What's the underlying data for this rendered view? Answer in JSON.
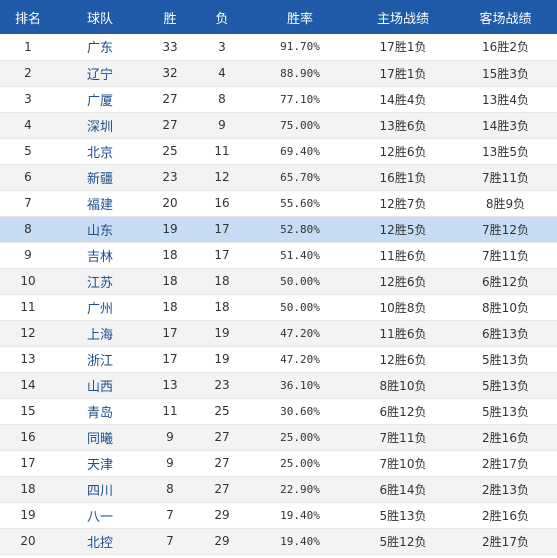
{
  "headers": {
    "rank": "排名",
    "team": "球队",
    "wins": "胜",
    "losses": "负",
    "rate": "胜率",
    "home": "主场战绩",
    "away": "客场战绩"
  },
  "rows": [
    {
      "rank": "1",
      "team": "广东",
      "wins": "33",
      "losses": "3",
      "rate": "91.70%",
      "home": "17胜1负",
      "away": "16胜2负"
    },
    {
      "rank": "2",
      "team": "辽宁",
      "wins": "32",
      "losses": "4",
      "rate": "88.90%",
      "home": "17胜1负",
      "away": "15胜3负"
    },
    {
      "rank": "3",
      "team": "广厦",
      "wins": "27",
      "losses": "8",
      "rate": "77.10%",
      "home": "14胜4负",
      "away": "13胜4负"
    },
    {
      "rank": "4",
      "team": "深圳",
      "wins": "27",
      "losses": "9",
      "rate": "75.00%",
      "home": "13胜6负",
      "away": "14胜3负"
    },
    {
      "rank": "5",
      "team": "北京",
      "wins": "25",
      "losses": "11",
      "rate": "69.40%",
      "home": "12胜6负",
      "away": "13胜5负"
    },
    {
      "rank": "6",
      "team": "新疆",
      "wins": "23",
      "losses": "12",
      "rate": "65.70%",
      "home": "16胜1负",
      "away": "7胜11负"
    },
    {
      "rank": "7",
      "team": "福建",
      "wins": "20",
      "losses": "16",
      "rate": "55.60%",
      "home": "12胜7负",
      "away": "8胜9负"
    },
    {
      "rank": "8",
      "team": "山东",
      "wins": "19",
      "losses": "17",
      "rate": "52.80%",
      "home": "12胜5负",
      "away": "7胜12负"
    },
    {
      "rank": "9",
      "team": "吉林",
      "wins": "18",
      "losses": "17",
      "rate": "51.40%",
      "home": "11胜6负",
      "away": "7胜11负"
    },
    {
      "rank": "10",
      "team": "江苏",
      "wins": "18",
      "losses": "18",
      "rate": "50.00%",
      "home": "12胜6负",
      "away": "6胜12负"
    },
    {
      "rank": "11",
      "team": "广州",
      "wins": "18",
      "losses": "18",
      "rate": "50.00%",
      "home": "10胜8负",
      "away": "8胜10负"
    },
    {
      "rank": "12",
      "team": "上海",
      "wins": "17",
      "losses": "19",
      "rate": "47.20%",
      "home": "11胜6负",
      "away": "6胜13负"
    },
    {
      "rank": "13",
      "team": "浙江",
      "wins": "17",
      "losses": "19",
      "rate": "47.20%",
      "home": "12胜6负",
      "away": "5胜13负"
    },
    {
      "rank": "14",
      "team": "山西",
      "wins": "13",
      "losses": "23",
      "rate": "36.10%",
      "home": "8胜10负",
      "away": "5胜13负"
    },
    {
      "rank": "15",
      "team": "青岛",
      "wins": "11",
      "losses": "25",
      "rate": "30.60%",
      "home": "6胜12负",
      "away": "5胜13负"
    },
    {
      "rank": "16",
      "team": "同曦",
      "wins": "9",
      "losses": "27",
      "rate": "25.00%",
      "home": "7胜11负",
      "away": "2胜16负"
    },
    {
      "rank": "17",
      "team": "天津",
      "wins": "9",
      "losses": "27",
      "rate": "25.00%",
      "home": "7胜10负",
      "away": "2胜17负"
    },
    {
      "rank": "18",
      "team": "四川",
      "wins": "8",
      "losses": "27",
      "rate": "22.90%",
      "home": "6胜14负",
      "away": "2胜13负"
    },
    {
      "rank": "19",
      "team": "八一",
      "wins": "7",
      "losses": "29",
      "rate": "19.40%",
      "home": "5胜13负",
      "away": "2胜16负"
    },
    {
      "rank": "20",
      "team": "北控",
      "wins": "7",
      "losses": "29",
      "rate": "19.40%",
      "home": "5胜12负",
      "away": "2胜17负"
    }
  ],
  "colors": {
    "header_bg": "#1e5aa8",
    "highlight_row_bg": "#c7dcf2",
    "team_link": "#1d4f8c"
  }
}
